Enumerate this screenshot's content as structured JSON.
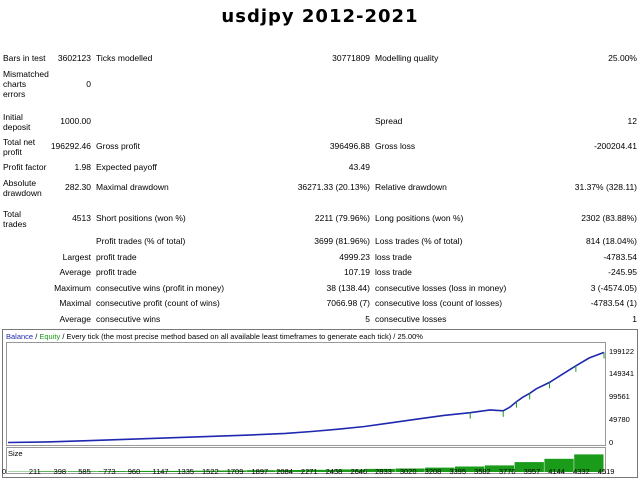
{
  "title": "usdjpy 2012-2021",
  "report": {
    "bars_in_test": {
      "label": "Bars in test",
      "value": "3602123"
    },
    "ticks_modelled": {
      "label": "Ticks modelled",
      "value": "30771809"
    },
    "modelling_quality": {
      "label": "Modelling quality",
      "value": "25.00%"
    },
    "mismatched": {
      "label": "Mismatched\ncharts\nerrors",
      "value": "0"
    },
    "initial_deposit": {
      "label": "Initial\ndeposit",
      "value": "1000.00"
    },
    "spread": {
      "label": "Spread",
      "value": "12"
    },
    "total_net_profit": {
      "label": "Total net\nprofit",
      "value": "196292.46"
    },
    "gross_profit": {
      "label": "Gross profit",
      "value": "396496.88"
    },
    "gross_loss": {
      "label": "Gross loss",
      "value": "-200204.41"
    },
    "profit_factor": {
      "label": "Profit factor",
      "value": "1.98"
    },
    "expected_payoff": {
      "label": "Expected payoff",
      "value": "43.49"
    },
    "absolute_drawdown": {
      "label": "Absolute\ndrawdown",
      "value": "282.30"
    },
    "maximal_drawdown": {
      "label": "Maximal drawdown",
      "value": "36271.33 (20.13%)"
    },
    "relative_drawdown": {
      "label": "Relative drawdown",
      "value": "31.37% (328.11)"
    },
    "total_trades": {
      "label": "Total\ntrades",
      "value": "4513"
    },
    "short_positions": {
      "label": "Short positions (won %)",
      "value": "2211 (79.96%)"
    },
    "long_positions": {
      "label": "Long positions (won %)",
      "value": "2302 (83.88%)"
    },
    "profit_trades": {
      "label": "Profit trades (% of total)",
      "value": "3699 (81.96%)"
    },
    "loss_trades": {
      "label": "Loss trades (% of total)",
      "value": "814 (18.04%)"
    },
    "largest": {
      "label": "Largest",
      "profit_label": "profit trade",
      "profit_value": "4999.23",
      "loss_label": "loss trade",
      "loss_value": "-4783.54"
    },
    "average": {
      "label": "Average",
      "profit_label": "profit trade",
      "profit_value": "107.19",
      "loss_label": "loss trade",
      "loss_value": "-245.95"
    },
    "maximum": {
      "label": "Maximum",
      "wins_label": "consecutive wins (profit in money)",
      "wins_value": "38 (138.44)",
      "losses_label": "consecutive losses (loss in money)",
      "losses_value": "3 (-4574.05)"
    },
    "maximal": {
      "label": "Maximal",
      "profit_label": "consecutive profit (count of wins)",
      "profit_value": "7066.98 (7)",
      "loss_label": "consecutive loss (count of losses)",
      "loss_value": "-4783.54 (1)"
    },
    "average_consec": {
      "label": "Average",
      "wins_label": "consecutive wins",
      "wins_value": "5",
      "losses_label": "consecutive losses",
      "losses_value": "1"
    }
  },
  "chart_data": {
    "type": "line",
    "legend_balance": "Balance",
    "legend_sep": " / ",
    "legend_equity": "Equity",
    "legend_rest": " / Every tick (the most precise method based on all available least timeframes to generate each tick) / 25.00%",
    "size_label": "Size",
    "colors": {
      "balance": "#1f28b0",
      "equity": "#1a9b1a",
      "size": "#1a9b1a"
    },
    "ylim": [
      0,
      209000
    ],
    "y_ticks": [
      "199122",
      "149341",
      "99561",
      "49780",
      "0"
    ],
    "y_tick_values": [
      199122,
      149341,
      99561,
      49780,
      0
    ],
    "x_ticks": [
      "0",
      "211",
      "398",
      "585",
      "773",
      "960",
      "1147",
      "1335",
      "1522",
      "1709",
      "1897",
      "2084",
      "2271",
      "2458",
      "2646",
      "2833",
      "3020",
      "3208",
      "3395",
      "3582",
      "3770",
      "3957",
      "4144",
      "4332",
      "4519"
    ],
    "x_tick_values": [
      0,
      211,
      398,
      585,
      773,
      960,
      1147,
      1335,
      1522,
      1709,
      1897,
      2084,
      2271,
      2458,
      2646,
      2833,
      3020,
      3208,
      3395,
      3582,
      3770,
      3957,
      4144,
      4332,
      4519
    ],
    "xlim": [
      0,
      4513
    ],
    "series": [
      {
        "name": "Balance",
        "x": [
          0,
          300,
          600,
          900,
          1200,
          1500,
          1800,
          2100,
          2300,
          2500,
          2700,
          2900,
          3100,
          3300,
          3500,
          3650,
          3750,
          3800,
          3850,
          3900,
          3950,
          4000,
          4100,
          4200,
          4300,
          4400,
          4513
        ],
        "values": [
          1000,
          2500,
          5000,
          8000,
          11000,
          14000,
          17000,
          21000,
          25000,
          30000,
          36000,
          44000,
          52000,
          60000,
          66000,
          72000,
          70000,
          78000,
          90000,
          100000,
          108000,
          118000,
          132000,
          150000,
          168000,
          185000,
          197300
        ]
      }
    ],
    "size_levels": [
      0.02,
      0.03,
      0.03,
      0.04,
      0.05,
      0.05,
      0.06,
      0.07,
      0.08,
      0.09,
      0.1,
      0.12,
      0.14,
      0.16,
      0.2,
      0.25,
      0.3,
      0.45,
      0.6,
      0.8
    ]
  }
}
